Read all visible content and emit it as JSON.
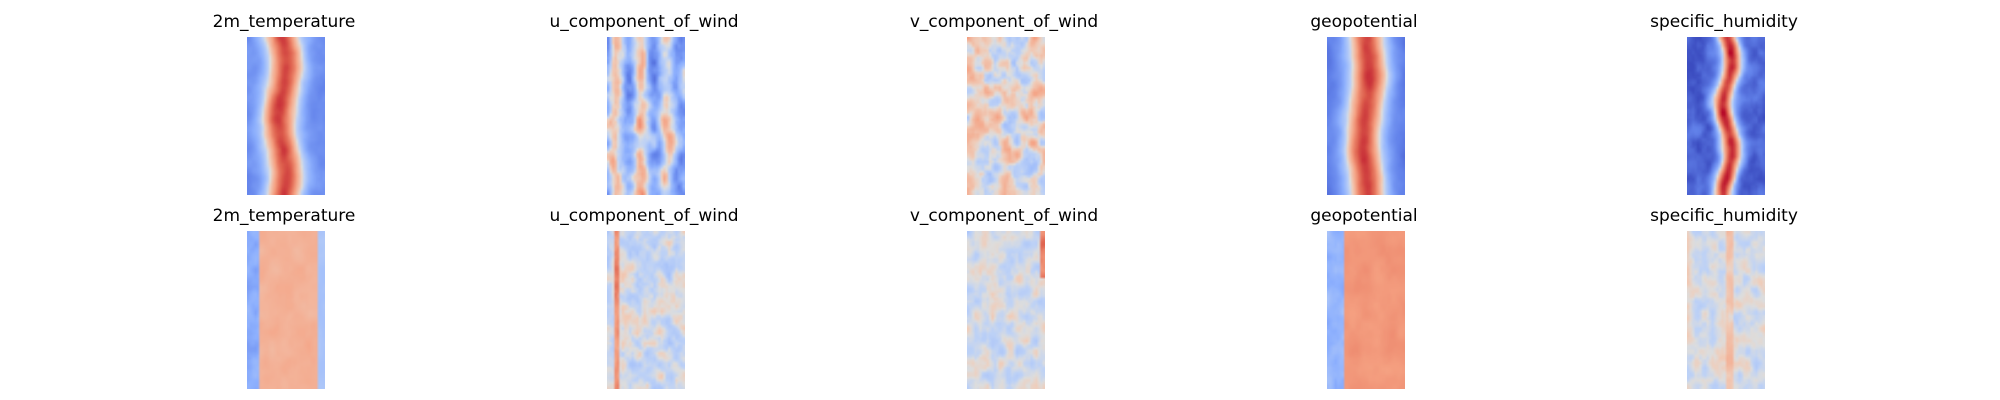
{
  "chart_data": {
    "type": "heatmap",
    "colormap": "coolwarm",
    "axes": "off",
    "layout": "2 rows x 5 columns",
    "panels": [
      {
        "row": 1,
        "title": "2m_temperature"
      },
      {
        "row": 1,
        "title": "u_component_of_wind"
      },
      {
        "row": 1,
        "title": "v_component_of_wind"
      },
      {
        "row": 1,
        "title": "geopotential"
      },
      {
        "row": 1,
        "title": "specific_humidity"
      },
      {
        "row": 2,
        "title": "2m_temperature"
      },
      {
        "row": 2,
        "title": "u_component_of_wind"
      },
      {
        "row": 2,
        "title": "v_component_of_wind"
      },
      {
        "row": 2,
        "title": "geopotential"
      },
      {
        "row": 2,
        "title": "specific_humidity"
      }
    ]
  }
}
